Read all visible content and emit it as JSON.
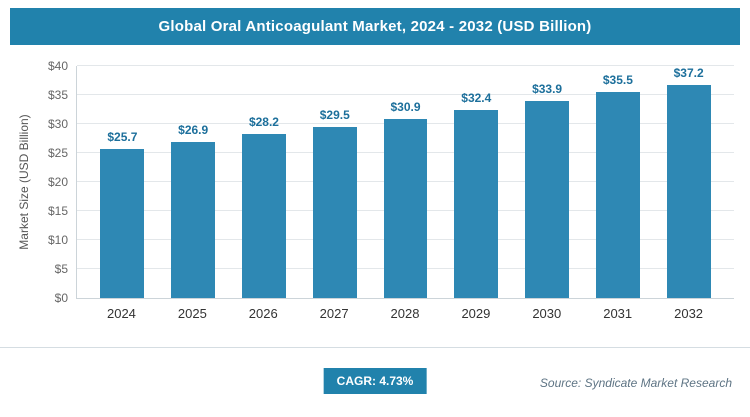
{
  "header": {
    "title": "Global Oral Anticoagulant Market, 2024 - 2032 (USD Billion)"
  },
  "chart_data": {
    "type": "bar",
    "title": "Global Oral Anticoagulant Market, 2024 - 2032 (USD Billion)",
    "categories": [
      "2024",
      "2025",
      "2026",
      "2027",
      "2028",
      "2029",
      "2030",
      "2031",
      "2032"
    ],
    "values": [
      25.7,
      26.9,
      28.2,
      29.5,
      30.9,
      32.4,
      33.9,
      35.5,
      37.2
    ],
    "value_labels": [
      "$25.7",
      "$26.9",
      "$28.2",
      "$29.5",
      "$30.9",
      "$32.4",
      "$33.9",
      "$35.5",
      "$37.2"
    ],
    "xlabel": "",
    "ylabel": "Market Size (USD Billion)",
    "ylim": [
      0,
      40
    ],
    "ytick_step": 5,
    "ytick_labels": [
      "$0",
      "$5",
      "$10",
      "$15",
      "$20",
      "$25",
      "$30",
      "$35",
      "$40"
    ],
    "grid": true,
    "legend": "none"
  },
  "footer": {
    "cagr_label": "CAGR: 4.73%",
    "source": "Source: Syndicate Market Research"
  },
  "colors": {
    "header_bg": "#2182ac",
    "badge_bg": "#2182ac",
    "bar": "#2e88b4",
    "value_label": "#1c6f9b"
  }
}
